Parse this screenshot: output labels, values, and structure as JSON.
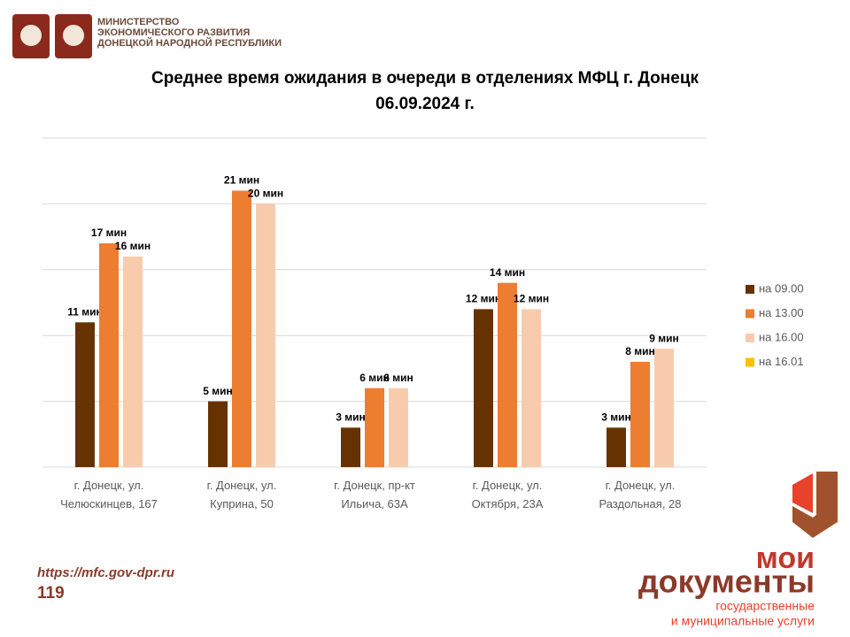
{
  "header": {
    "lines": [
      "МИНИСТЕРСТВО",
      "ЭКОНОМИЧЕСКОГО РАЗВИТИЯ",
      "ДОНЕЦКОЙ НАРОДНОЙ РЕСПУБЛИКИ"
    ]
  },
  "footer": {
    "url": "https://mfc.gov-dpr.ru",
    "page": "119",
    "logo_top": "мои",
    "logo_main": "документы",
    "logo_sub1": "государственные",
    "logo_sub2": "и муниципальные услуги"
  },
  "chart_data": {
    "type": "bar",
    "title": "Среднее время ожидания в очереди в отделениях МФЦ г. Донецк",
    "subtitle": "06.09.2024 г.",
    "categories": [
      "г. Донецк, ул.\nЧелюскинцев, 167",
      "г. Донецк, ул.\nКуприна, 50",
      "г. Донецк, пр-кт\nИльича, 63А",
      "г. Донецк, ул.\nОктября, 23А",
      "г. Донецк, ул.\nРаздольная, 28"
    ],
    "series": [
      {
        "name": "на 09.00",
        "color": "#663300",
        "values": [
          11,
          5,
          3,
          12,
          3
        ],
        "value_labels": [
          "11 мин",
          "5 мин",
          "3 мин",
          "12 мин",
          "3 мин"
        ]
      },
      {
        "name": "на 13.00",
        "color": "#ed7d31",
        "values": [
          17,
          21,
          6,
          14,
          8
        ],
        "value_labels": [
          "17 мин",
          "21 мин",
          "6 мин",
          "14 мин",
          "8 мин"
        ]
      },
      {
        "name": "на 16.00",
        "color": "#f8cbad",
        "values": [
          16,
          20,
          6,
          12,
          9
        ],
        "value_labels": [
          "16 мин",
          "20 мин",
          "6 мин",
          "12 мин",
          "9 мин"
        ]
      },
      {
        "name": "на 16.01",
        "color": "#ffc000",
        "values": [
          null,
          null,
          null,
          null,
          null
        ]
      }
    ],
    "ylim": [
      0,
      25
    ],
    "yticks": [
      0,
      5,
      10,
      15,
      20,
      25
    ],
    "grid": true,
    "legend": "right"
  }
}
